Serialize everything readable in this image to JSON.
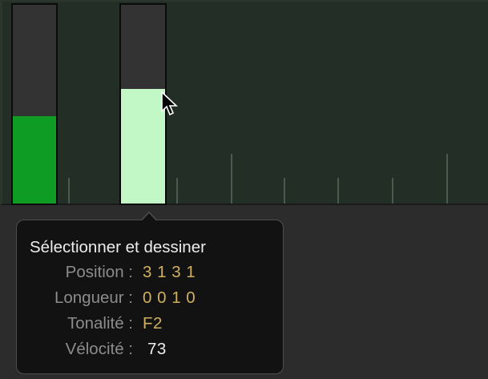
{
  "colors": {
    "lane_bg": "#232f26",
    "bar_empty": "#333333",
    "note_normal": "#0e9c25",
    "note_selected": "#c2f8c6",
    "value_accent": "#d0b060",
    "value_white": "#ececec"
  },
  "notes": [
    {
      "velocity_fraction": 0.44,
      "selected": false
    },
    {
      "velocity_fraction": 0.575,
      "selected": true
    }
  ],
  "tooltip": {
    "title": "Sélectionner et dessiner",
    "rows": [
      {
        "label": "Position :",
        "value": "3 1 3 1"
      },
      {
        "label": "Longueur :",
        "value": "0 0 1 0"
      },
      {
        "label": "Tonalité :",
        "value": "F2"
      },
      {
        "label": "Vélocité :",
        "value": "73"
      }
    ]
  },
  "cursor_icon": "arrow-pointer-icon"
}
